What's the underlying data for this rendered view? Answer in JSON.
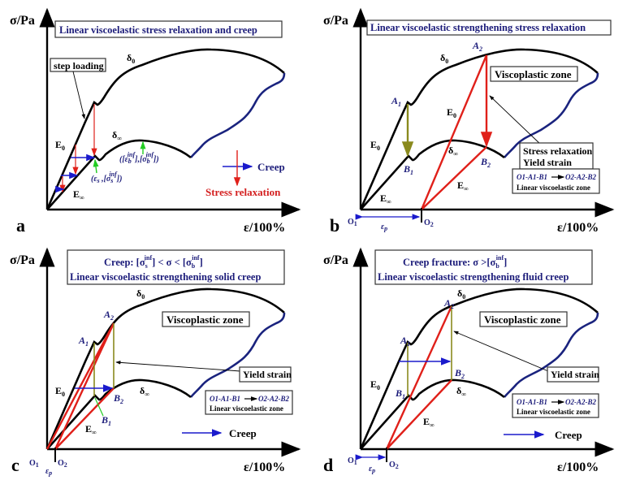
{
  "common": {
    "y_axis": "σ/Pa",
    "x_axis": "ε/100%",
    "delta": "δ",
    "sub_0": "0",
    "sub_inf": "∞",
    "E": "E",
    "viscoplastic_zone": "Viscoplastic zone",
    "yield_strain": "Yield strain",
    "creep": "Creep",
    "O1_A1_B1": "O1-A1-B1",
    "O2_A2_B2": "O2-A2-B2",
    "linear_viscoelastic_zone": "Linear viscoelastic  zone",
    "A": "A",
    "B": "B",
    "O": "O",
    "one": "1",
    "two": "2",
    "eps": "ε",
    "p": "p",
    "colors": {
      "curve": "#000000",
      "fracture_curve": "#1a237e",
      "relaxation": "#e0201a",
      "creep": "#1a1acc",
      "text_navy": "#1c1c7a",
      "olive": "#8a8a1e",
      "green": "#22cc22"
    }
  },
  "panel_a": {
    "letter": "a",
    "title": "Linear viscoelastic stress relaxation and creep",
    "step_loading": "step loading",
    "point_s": "(ε",
    "point_s_sub": "s",
    "point_s_rest": " ,[σ",
    "point_s_sub2": "s",
    "point_s_sup": "inf",
    "point_s_end": "])",
    "point_b_open": "([ε",
    "point_b_sub": "b",
    "point_b_sup": "inf",
    "point_b_mid": "],[σ",
    "point_b_sub2": "b",
    "point_b_sup2": "inf",
    "point_b_end": "])",
    "legend_creep": "Creep",
    "legend_relaxation": "Stress relaxation"
  },
  "panel_b": {
    "letter": "b",
    "title": "Linear viscoelastic strengthening stress relaxation",
    "stress_relaxation": "Stress relaxation",
    "yield_strain": "Yield strain"
  },
  "panel_c": {
    "letter": "c",
    "title_line1_pre": "Creep: [σ",
    "title_line1_sub1": "s",
    "title_line1_sup1": "inf",
    "title_line1_mid": "] < σ < [σ",
    "title_line1_sub2": "b",
    "title_line1_sup2": "inf",
    "title_line1_end": "]",
    "title_line2": "Linear viscoelastic strengthening solid creep"
  },
  "panel_d": {
    "letter": "d",
    "title_line1_pre": "Creep fracture: σ >[σ",
    "title_line1_sub": "b",
    "title_line1_sup": "inf",
    "title_line1_end": "]",
    "title_line2": "Linear viscoelastic strengthening fluid creep"
  }
}
